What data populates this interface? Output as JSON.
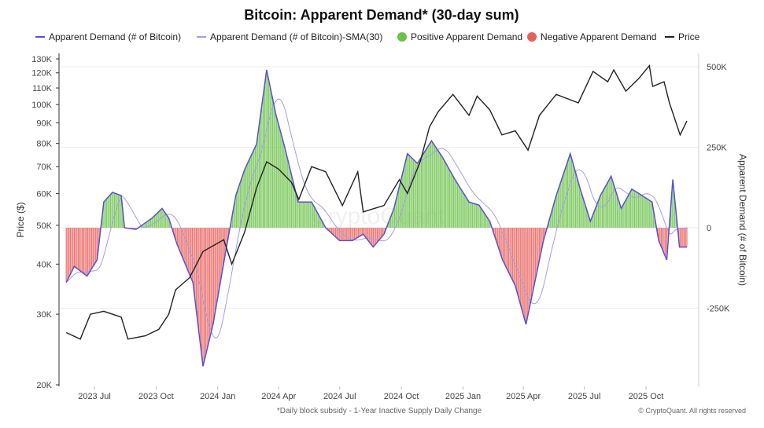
{
  "chart_data": {
    "type": "line",
    "title": "Bitcoin: Apparent Demand* (30-day sum)",
    "footnote": "*Daily block subsidy - 1-Year Inactive Supply Daily Change",
    "copyright": "© CryptoQuant. All rights reserved",
    "watermark": "CryptoQuant",
    "ylabel_left": "Price ($)",
    "ylabel_right": "Apparent Demand (# of Bitcoin)",
    "left_axis": {
      "scale": "log",
      "range": [
        20000,
        130000
      ],
      "ticks": [
        "130K",
        "120K",
        "110K",
        "100K",
        "90K",
        "80K",
        "70K",
        "60K",
        "50K",
        "40K",
        "30K",
        "20K"
      ],
      "tick_values": [
        130000,
        120000,
        110000,
        100000,
        90000,
        80000,
        70000,
        60000,
        50000,
        40000,
        30000,
        20000
      ]
    },
    "right_axis": {
      "scale": "linear",
      "ticks": [
        "500K",
        "250K",
        "0",
        "-250K"
      ],
      "tick_values": [
        500000,
        250000,
        0,
        -250000
      ]
    },
    "x_ticks": [
      "2023 Jul",
      "2023 Oct",
      "2024 Jan",
      "2024 Apr",
      "2024 Jul",
      "2024 Oct",
      "2025 Jan",
      "2025 Apr",
      "2025 Jul",
      "2025 Oct"
    ],
    "x_tick_dates": [
      "2023-07-01",
      "2023-10-01",
      "2024-01-01",
      "2024-04-01",
      "2024-07-01",
      "2024-10-01",
      "2025-01-01",
      "2025-04-01",
      "2025-07-01",
      "2025-10-01"
    ],
    "legend": [
      {
        "label": "Apparent Demand (# of Bitcoin)",
        "color": "#5b4fd6",
        "shape": "line"
      },
      {
        "label": "Apparent Demand (# of Bitcoin)-SMA(30)",
        "color": "#a49ee8",
        "shape": "line"
      },
      {
        "label": "Positive Apparent Demand",
        "color": "#6cc24a",
        "shape": "dot"
      },
      {
        "label": "Negative Apparent Demand",
        "color": "#e8605c",
        "shape": "dot"
      },
      {
        "label": "Price",
        "color": "#222222",
        "shape": "line"
      }
    ],
    "series": [
      {
        "name": "Price",
        "axis": "left",
        "points": [
          [
            "2023-05-20",
            27000
          ],
          [
            "2023-06-10",
            26000
          ],
          [
            "2023-06-25",
            30000
          ],
          [
            "2023-07-15",
            30500
          ],
          [
            "2023-08-10",
            29500
          ],
          [
            "2023-08-20",
            26000
          ],
          [
            "2023-09-15",
            26500
          ],
          [
            "2023-10-05",
            27500
          ],
          [
            "2023-10-20",
            30000
          ],
          [
            "2023-10-30",
            34500
          ],
          [
            "2023-11-20",
            37000
          ],
          [
            "2023-12-10",
            43000
          ],
          [
            "2024-01-10",
            46000
          ],
          [
            "2024-01-22",
            40000
          ],
          [
            "2024-02-10",
            48000
          ],
          [
            "2024-02-28",
            62000
          ],
          [
            "2024-03-14",
            72000
          ],
          [
            "2024-04-01",
            69000
          ],
          [
            "2024-04-20",
            64000
          ],
          [
            "2024-05-01",
            58000
          ],
          [
            "2024-05-20",
            70000
          ],
          [
            "2024-06-10",
            68000
          ],
          [
            "2024-07-05",
            56000
          ],
          [
            "2024-07-28",
            68000
          ],
          [
            "2024-08-05",
            54000
          ],
          [
            "2024-09-05",
            56000
          ],
          [
            "2024-09-28",
            65000
          ],
          [
            "2024-10-10",
            60000
          ],
          [
            "2024-10-29",
            72000
          ],
          [
            "2024-11-12",
            88000
          ],
          [
            "2024-11-25",
            96000
          ],
          [
            "2024-12-17",
            106000
          ],
          [
            "2025-01-10",
            94000
          ],
          [
            "2025-01-22",
            105000
          ],
          [
            "2025-02-10",
            97000
          ],
          [
            "2025-02-28",
            84000
          ],
          [
            "2025-03-20",
            86000
          ],
          [
            "2025-04-08",
            77000
          ],
          [
            "2025-04-25",
            94000
          ],
          [
            "2025-05-20",
            106000
          ],
          [
            "2025-06-22",
            101000
          ],
          [
            "2025-07-14",
            121000
          ],
          [
            "2025-08-05",
            114000
          ],
          [
            "2025-08-14",
            122000
          ],
          [
            "2025-09-01",
            108000
          ],
          [
            "2025-09-20",
            116000
          ],
          [
            "2025-10-06",
            125000
          ],
          [
            "2025-10-11",
            111000
          ],
          [
            "2025-10-28",
            114000
          ],
          [
            "2025-11-05",
            101000
          ],
          [
            "2025-11-21",
            84000
          ],
          [
            "2025-12-01",
            91000
          ]
        ]
      },
      {
        "name": "Apparent Demand (# of Bitcoin)",
        "axis": "right",
        "points": [
          [
            "2023-05-20",
            -170000
          ],
          [
            "2023-06-01",
            -120000
          ],
          [
            "2023-06-20",
            -150000
          ],
          [
            "2023-07-05",
            -100000
          ],
          [
            "2023-07-15",
            80000
          ],
          [
            "2023-07-28",
            110000
          ],
          [
            "2023-08-10",
            100000
          ],
          [
            "2023-08-15",
            0
          ],
          [
            "2023-09-01",
            -5000
          ],
          [
            "2023-09-25",
            30000
          ],
          [
            "2023-10-10",
            60000
          ],
          [
            "2023-10-20",
            30000
          ],
          [
            "2023-11-01",
            -50000
          ],
          [
            "2023-11-25",
            -170000
          ],
          [
            "2023-12-10",
            -430000
          ],
          [
            "2023-12-25",
            -300000
          ],
          [
            "2024-01-15",
            -50000
          ],
          [
            "2024-01-28",
            100000
          ],
          [
            "2024-02-10",
            180000
          ],
          [
            "2024-02-28",
            260000
          ],
          [
            "2024-03-14",
            490000
          ],
          [
            "2024-03-28",
            350000
          ],
          [
            "2024-04-10",
            250000
          ],
          [
            "2024-04-30",
            80000
          ],
          [
            "2024-05-20",
            80000
          ],
          [
            "2024-06-10",
            0
          ],
          [
            "2024-07-01",
            -40000
          ],
          [
            "2024-07-20",
            -40000
          ],
          [
            "2024-08-05",
            -20000
          ],
          [
            "2024-08-20",
            -60000
          ],
          [
            "2024-09-05",
            -20000
          ],
          [
            "2024-09-20",
            60000
          ],
          [
            "2024-10-10",
            230000
          ],
          [
            "2024-10-25",
            200000
          ],
          [
            "2024-11-15",
            270000
          ],
          [
            "2024-12-01",
            220000
          ],
          [
            "2024-12-20",
            150000
          ],
          [
            "2025-01-10",
            80000
          ],
          [
            "2025-01-25",
            70000
          ],
          [
            "2025-02-10",
            20000
          ],
          [
            "2025-03-01",
            -100000
          ],
          [
            "2025-03-20",
            -180000
          ],
          [
            "2025-04-05",
            -300000
          ],
          [
            "2025-04-15",
            -200000
          ],
          [
            "2025-05-01",
            -40000
          ],
          [
            "2025-05-20",
            100000
          ],
          [
            "2025-06-10",
            230000
          ],
          [
            "2025-06-25",
            120000
          ],
          [
            "2025-07-10",
            20000
          ],
          [
            "2025-07-25",
            100000
          ],
          [
            "2025-08-10",
            160000
          ],
          [
            "2025-08-25",
            60000
          ],
          [
            "2025-09-10",
            120000
          ],
          [
            "2025-09-25",
            100000
          ],
          [
            "2025-10-10",
            80000
          ],
          [
            "2025-10-20",
            -40000
          ],
          [
            "2025-11-01",
            -100000
          ],
          [
            "2025-11-10",
            150000
          ],
          [
            "2025-11-20",
            -60000
          ],
          [
            "2025-12-01",
            -60000
          ]
        ]
      }
    ],
    "sma_window_days": 30,
    "grid": true,
    "legend_position": "top"
  }
}
